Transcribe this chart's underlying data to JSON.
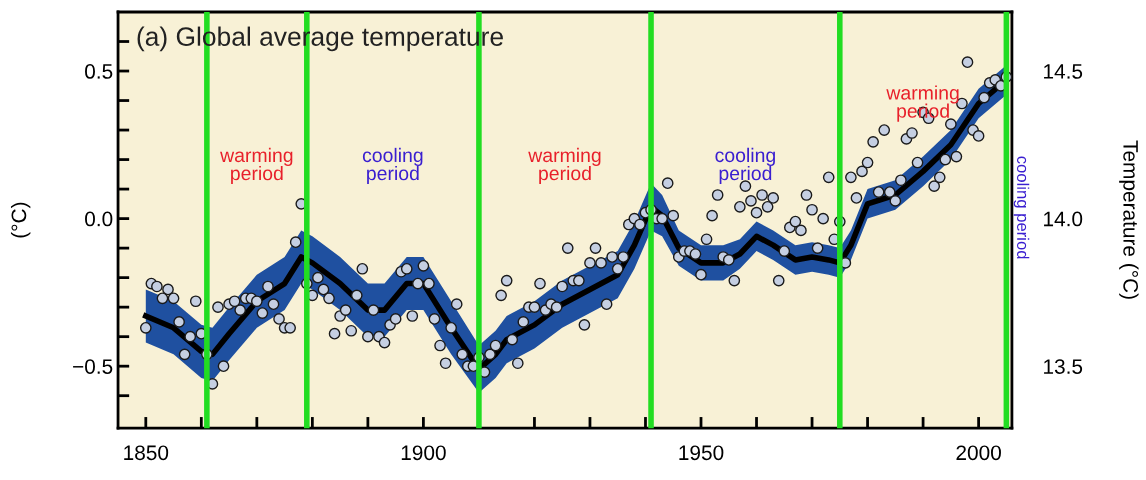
{
  "chart_data": {
    "type": "scatter",
    "title": "(a) Global average temperature",
    "ylabel": "(°C)",
    "y2label": "Temperature (°C)",
    "xlim": [
      1845,
      2006
    ],
    "ylim": [
      -0.71,
      0.7
    ],
    "y2lim": [
      13.29,
      14.7
    ],
    "xticks": [
      1850,
      {
        "value": 1860,
        "label": null
      },
      {
        "value": 1870,
        "label": null
      },
      {
        "value": 1880,
        "label": null
      },
      {
        "value": 1890,
        "label": null
      },
      1900,
      {
        "value": 1910,
        "label": null
      },
      {
        "value": 1920,
        "label": null
      },
      {
        "value": 1930,
        "label": null
      },
      {
        "value": 1940,
        "label": null
      },
      1950,
      {
        "value": 1960,
        "label": null
      },
      {
        "value": 1970,
        "label": null
      },
      {
        "value": 1980,
        "label": null
      },
      {
        "value": 1990,
        "label": null
      },
      2000
    ],
    "yticks": [
      {
        "value": -0.6,
        "label": null
      },
      {
        "value": -0.5,
        "label": "−0.5"
      },
      {
        "value": -0.4,
        "label": null
      },
      {
        "value": -0.3,
        "label": null
      },
      {
        "value": -0.2,
        "label": null
      },
      {
        "value": -0.1,
        "label": null
      },
      {
        "value": 0,
        "label": "0.0"
      },
      {
        "value": 0.1,
        "label": null
      },
      {
        "value": 0.2,
        "label": null
      },
      {
        "value": 0.3,
        "label": null
      },
      {
        "value": 0.4,
        "label": null
      },
      {
        "value": 0.5,
        "label": "0.5"
      },
      {
        "value": 0.6,
        "label": null
      }
    ],
    "y2ticks": [
      {
        "value": 13.4,
        "label": null
      },
      13.5,
      {
        "value": 13.6,
        "label": null
      },
      {
        "value": 13.7,
        "label": null
      },
      {
        "value": 13.8,
        "label": null
      },
      {
        "value": 13.9,
        "label": null
      },
      {
        "value": 14.0,
        "label": "14.0"
      },
      {
        "value": 14.1,
        "label": null
      },
      {
        "value": 14.2,
        "label": null
      },
      {
        "value": 14.3,
        "label": null
      },
      {
        "value": 14.4,
        "label": null
      },
      14.5,
      {
        "value": 14.6,
        "label": null
      }
    ],
    "grid": false,
    "legend": false,
    "marker": "circle",
    "series": [
      {
        "type": "line",
        "color": "#000000",
        "x": [
          1850,
          1855,
          1860,
          1862,
          1865,
          1870,
          1875,
          1878,
          1880,
          1885,
          1890,
          1893,
          1897,
          1900,
          1905,
          1910,
          1913,
          1915,
          1920,
          1925,
          1930,
          1935,
          1938,
          1941,
          1943,
          1946,
          1950,
          1954,
          1957,
          1960,
          1963,
          1967,
          1970,
          1973,
          1975,
          1977,
          1980,
          1985,
          1990,
          1995,
          2000,
          2005
        ],
        "values": [
          -0.33,
          -0.37,
          -0.45,
          -0.46,
          -0.39,
          -0.28,
          -0.22,
          -0.13,
          -0.15,
          -0.22,
          -0.31,
          -0.31,
          -0.22,
          -0.22,
          -0.37,
          -0.51,
          -0.46,
          -0.41,
          -0.36,
          -0.29,
          -0.24,
          -0.19,
          -0.09,
          0.04,
          0.01,
          -0.1,
          -0.15,
          -0.15,
          -0.12,
          -0.06,
          -0.09,
          -0.14,
          -0.13,
          -0.14,
          -0.15,
          -0.09,
          0.05,
          0.08,
          0.16,
          0.25,
          0.39,
          0.47
        ],
        "lower": [
          -0.42,
          -0.46,
          -0.54,
          -0.55,
          -0.48,
          -0.37,
          -0.31,
          -0.22,
          -0.24,
          -0.31,
          -0.4,
          -0.4,
          -0.31,
          -0.31,
          -0.46,
          -0.59,
          -0.54,
          -0.49,
          -0.44,
          -0.37,
          -0.32,
          -0.27,
          -0.17,
          -0.04,
          -0.06,
          -0.16,
          -0.21,
          -0.21,
          -0.17,
          -0.11,
          -0.14,
          -0.19,
          -0.18,
          -0.19,
          -0.2,
          -0.14,
          0.0,
          0.03,
          0.11,
          0.2,
          0.34,
          0.42
        ],
        "upper": [
          -0.24,
          -0.28,
          -0.36,
          -0.37,
          -0.3,
          -0.19,
          -0.13,
          -0.04,
          -0.06,
          -0.13,
          -0.22,
          -0.22,
          -0.13,
          -0.13,
          -0.28,
          -0.43,
          -0.38,
          -0.33,
          -0.28,
          -0.21,
          -0.16,
          -0.11,
          -0.01,
          0.12,
          0.08,
          -0.04,
          -0.09,
          -0.09,
          -0.07,
          -0.01,
          -0.04,
          -0.09,
          -0.08,
          -0.09,
          -0.1,
          -0.04,
          0.1,
          0.13,
          0.21,
          0.3,
          0.44,
          0.52
        ],
        "marker": "none"
      },
      {
        "color": "#c5cfe2",
        "x": [
          1850,
          1851,
          1852,
          1853,
          1854,
          1855,
          1856,
          1857,
          1858,
          1859,
          1860,
          1861,
          1862,
          1863,
          1864,
          1865,
          1866,
          1867,
          1868,
          1869,
          1870,
          1871,
          1872,
          1873,
          1874,
          1875,
          1876,
          1877,
          1878,
          1879,
          1880,
          1881,
          1882,
          1883,
          1884,
          1885,
          1886,
          1887,
          1888,
          1889,
          1890,
          1891,
          1892,
          1893,
          1894,
          1895,
          1896,
          1897,
          1898,
          1899,
          1900,
          1901,
          1902,
          1903,
          1904,
          1905,
          1906,
          1907,
          1908,
          1909,
          1910,
          1911,
          1912,
          1913,
          1914,
          1915,
          1916,
          1917,
          1918,
          1919,
          1920,
          1921,
          1922,
          1923,
          1924,
          1925,
          1926,
          1927,
          1928,
          1929,
          1930,
          1931,
          1932,
          1933,
          1934,
          1935,
          1936,
          1937,
          1938,
          1939,
          1940,
          1941,
          1942,
          1943,
          1944,
          1945,
          1946,
          1947,
          1948,
          1949,
          1950,
          1951,
          1952,
          1953,
          1954,
          1955,
          1956,
          1957,
          1958,
          1959,
          1960,
          1961,
          1962,
          1963,
          1964,
          1965,
          1966,
          1967,
          1968,
          1969,
          1970,
          1971,
          1972,
          1973,
          1974,
          1975,
          1976,
          1977,
          1978,
          1979,
          1980,
          1981,
          1982,
          1983,
          1984,
          1985,
          1986,
          1987,
          1988,
          1989,
          1990,
          1991,
          1992,
          1993,
          1994,
          1995,
          1996,
          1997,
          1998,
          1999,
          2000,
          2001,
          2002,
          2003,
          2004,
          2005
        ],
        "values": [
          -0.37,
          -0.22,
          -0.23,
          -0.27,
          -0.24,
          -0.27,
          -0.35,
          -0.46,
          -0.4,
          -0.28,
          -0.39,
          -0.46,
          -0.56,
          -0.3,
          -0.5,
          -0.29,
          -0.28,
          -0.31,
          -0.27,
          -0.27,
          -0.28,
          -0.32,
          -0.23,
          -0.29,
          -0.34,
          -0.37,
          -0.37,
          -0.08,
          0.05,
          -0.22,
          -0.26,
          -0.2,
          -0.24,
          -0.27,
          -0.39,
          -0.33,
          -0.31,
          -0.38,
          -0.26,
          -0.17,
          -0.4,
          -0.31,
          -0.4,
          -0.42,
          -0.36,
          -0.34,
          -0.18,
          -0.17,
          -0.33,
          -0.22,
          -0.16,
          -0.22,
          -0.34,
          -0.43,
          -0.49,
          -0.37,
          -0.29,
          -0.46,
          -0.5,
          -0.5,
          -0.47,
          -0.52,
          -0.46,
          -0.43,
          -0.26,
          -0.21,
          -0.41,
          -0.49,
          -0.35,
          -0.3,
          -0.3,
          -0.22,
          -0.31,
          -0.29,
          -0.3,
          -0.23,
          -0.1,
          -0.21,
          -0.21,
          -0.36,
          -0.15,
          -0.1,
          -0.15,
          -0.29,
          -0.13,
          -0.17,
          -0.13,
          -0.02,
          0.0,
          -0.02,
          0.02,
          0.03,
          0.0,
          0.0,
          0.12,
          0.01,
          -0.13,
          -0.11,
          -0.11,
          -0.12,
          -0.19,
          -0.07,
          0.01,
          0.08,
          -0.13,
          -0.14,
          -0.21,
          0.04,
          0.11,
          0.06,
          0.02,
          0.08,
          0.04,
          0.07,
          -0.21,
          -0.11,
          -0.03,
          -0.01,
          -0.04,
          0.08,
          0.03,
          -0.1,
          0.0,
          0.14,
          -0.07,
          -0.01,
          -0.15,
          0.14,
          0.07,
          0.16,
          0.19,
          0.26,
          0.09,
          0.3,
          0.09,
          0.06,
          0.13,
          0.27,
          0.29,
          0.19,
          0.36,
          0.34,
          0.11,
          0.14,
          0.2,
          0.32,
          0.21,
          0.39,
          0.53,
          0.3,
          0.28,
          0.41,
          0.46,
          0.47,
          0.45,
          0.48
        ]
      }
    ],
    "ref_lines": [
      {
        "axis": "x",
        "value": 1861,
        "color": "#22dd22"
      },
      {
        "axis": "x",
        "value": 1879,
        "color": "#22dd22"
      },
      {
        "axis": "x",
        "value": 1910,
        "color": "#22dd22"
      },
      {
        "axis": "x",
        "value": 1941,
        "color": "#22dd22"
      },
      {
        "axis": "x",
        "value": 1975,
        "color": "#22dd22"
      },
      {
        "axis": "x",
        "value": 2005,
        "color": "#22dd22"
      }
    ],
    "annotations": [
      "warming\nperiod",
      "cooling\nperiod",
      "warming\nperiod",
      "cooling\nperiod",
      "warming\nperiod",
      "cooling period"
    ]
  }
}
